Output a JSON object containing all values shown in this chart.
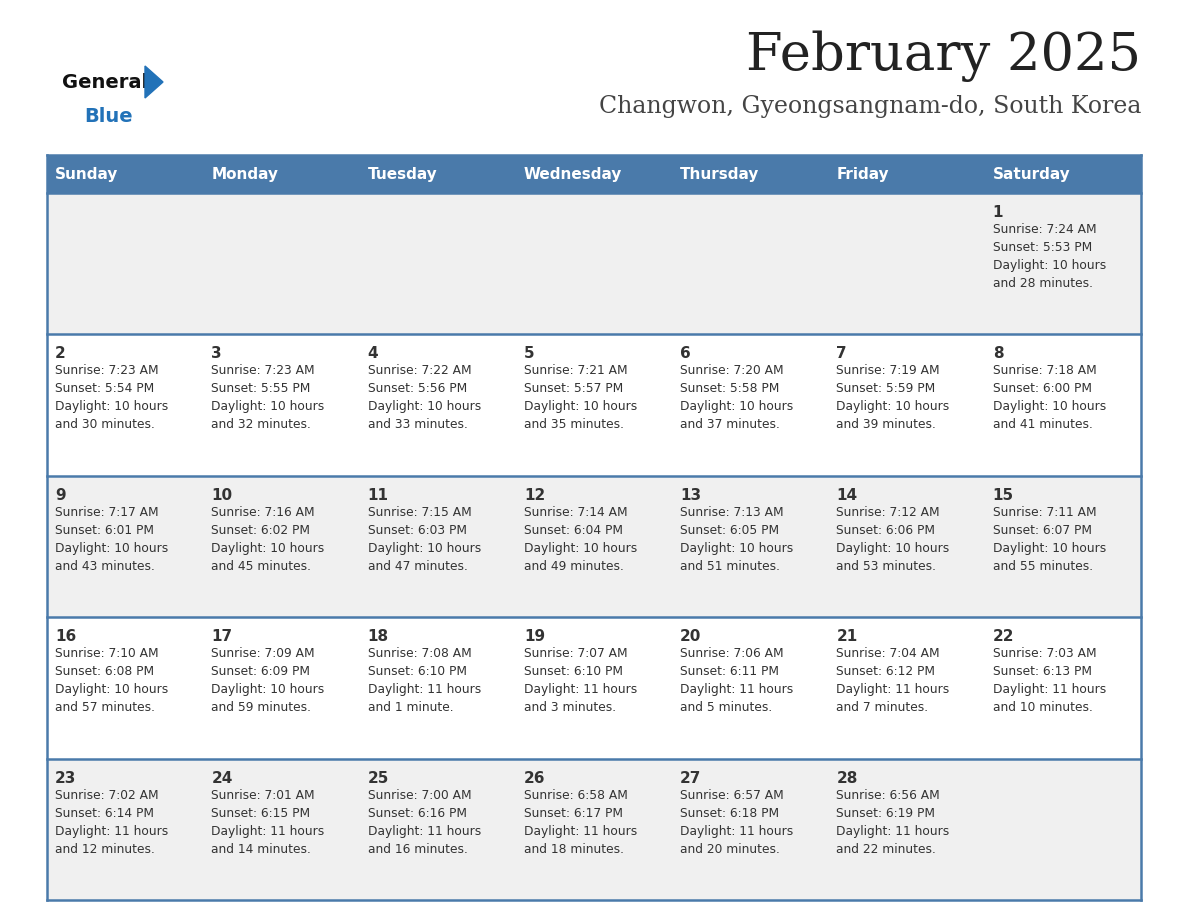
{
  "title": "February 2025",
  "subtitle": "Changwon, Gyeongsangnam-do, South Korea",
  "days_of_week": [
    "Sunday",
    "Monday",
    "Tuesday",
    "Wednesday",
    "Thursday",
    "Friday",
    "Saturday"
  ],
  "header_bg": "#4a7aaa",
  "header_text": "#FFFFFF",
  "row_bg_odd": "#f0f0f0",
  "row_bg_even": "#FFFFFF",
  "cell_text_color": "#333333",
  "day_num_color": "#333333",
  "border_color": "#4a7aaa",
  "separator_color": "#4a7aaa",
  "title_color": "#222222",
  "subtitle_color": "#444444",
  "logo_general_color": "#111111",
  "logo_blue_color": "#2272B8",
  "calendar_data": [
    [
      {
        "day": "",
        "info": ""
      },
      {
        "day": "",
        "info": ""
      },
      {
        "day": "",
        "info": ""
      },
      {
        "day": "",
        "info": ""
      },
      {
        "day": "",
        "info": ""
      },
      {
        "day": "",
        "info": ""
      },
      {
        "day": "1",
        "info": "Sunrise: 7:24 AM\nSunset: 5:53 PM\nDaylight: 10 hours\nand 28 minutes."
      }
    ],
    [
      {
        "day": "2",
        "info": "Sunrise: 7:23 AM\nSunset: 5:54 PM\nDaylight: 10 hours\nand 30 minutes."
      },
      {
        "day": "3",
        "info": "Sunrise: 7:23 AM\nSunset: 5:55 PM\nDaylight: 10 hours\nand 32 minutes."
      },
      {
        "day": "4",
        "info": "Sunrise: 7:22 AM\nSunset: 5:56 PM\nDaylight: 10 hours\nand 33 minutes."
      },
      {
        "day": "5",
        "info": "Sunrise: 7:21 AM\nSunset: 5:57 PM\nDaylight: 10 hours\nand 35 minutes."
      },
      {
        "day": "6",
        "info": "Sunrise: 7:20 AM\nSunset: 5:58 PM\nDaylight: 10 hours\nand 37 minutes."
      },
      {
        "day": "7",
        "info": "Sunrise: 7:19 AM\nSunset: 5:59 PM\nDaylight: 10 hours\nand 39 minutes."
      },
      {
        "day": "8",
        "info": "Sunrise: 7:18 AM\nSunset: 6:00 PM\nDaylight: 10 hours\nand 41 minutes."
      }
    ],
    [
      {
        "day": "9",
        "info": "Sunrise: 7:17 AM\nSunset: 6:01 PM\nDaylight: 10 hours\nand 43 minutes."
      },
      {
        "day": "10",
        "info": "Sunrise: 7:16 AM\nSunset: 6:02 PM\nDaylight: 10 hours\nand 45 minutes."
      },
      {
        "day": "11",
        "info": "Sunrise: 7:15 AM\nSunset: 6:03 PM\nDaylight: 10 hours\nand 47 minutes."
      },
      {
        "day": "12",
        "info": "Sunrise: 7:14 AM\nSunset: 6:04 PM\nDaylight: 10 hours\nand 49 minutes."
      },
      {
        "day": "13",
        "info": "Sunrise: 7:13 AM\nSunset: 6:05 PM\nDaylight: 10 hours\nand 51 minutes."
      },
      {
        "day": "14",
        "info": "Sunrise: 7:12 AM\nSunset: 6:06 PM\nDaylight: 10 hours\nand 53 minutes."
      },
      {
        "day": "15",
        "info": "Sunrise: 7:11 AM\nSunset: 6:07 PM\nDaylight: 10 hours\nand 55 minutes."
      }
    ],
    [
      {
        "day": "16",
        "info": "Sunrise: 7:10 AM\nSunset: 6:08 PM\nDaylight: 10 hours\nand 57 minutes."
      },
      {
        "day": "17",
        "info": "Sunrise: 7:09 AM\nSunset: 6:09 PM\nDaylight: 10 hours\nand 59 minutes."
      },
      {
        "day": "18",
        "info": "Sunrise: 7:08 AM\nSunset: 6:10 PM\nDaylight: 11 hours\nand 1 minute."
      },
      {
        "day": "19",
        "info": "Sunrise: 7:07 AM\nSunset: 6:10 PM\nDaylight: 11 hours\nand 3 minutes."
      },
      {
        "day": "20",
        "info": "Sunrise: 7:06 AM\nSunset: 6:11 PM\nDaylight: 11 hours\nand 5 minutes."
      },
      {
        "day": "21",
        "info": "Sunrise: 7:04 AM\nSunset: 6:12 PM\nDaylight: 11 hours\nand 7 minutes."
      },
      {
        "day": "22",
        "info": "Sunrise: 7:03 AM\nSunset: 6:13 PM\nDaylight: 11 hours\nand 10 minutes."
      }
    ],
    [
      {
        "day": "23",
        "info": "Sunrise: 7:02 AM\nSunset: 6:14 PM\nDaylight: 11 hours\nand 12 minutes."
      },
      {
        "day": "24",
        "info": "Sunrise: 7:01 AM\nSunset: 6:15 PM\nDaylight: 11 hours\nand 14 minutes."
      },
      {
        "day": "25",
        "info": "Sunrise: 7:00 AM\nSunset: 6:16 PM\nDaylight: 11 hours\nand 16 minutes."
      },
      {
        "day": "26",
        "info": "Sunrise: 6:58 AM\nSunset: 6:17 PM\nDaylight: 11 hours\nand 18 minutes."
      },
      {
        "day": "27",
        "info": "Sunrise: 6:57 AM\nSunset: 6:18 PM\nDaylight: 11 hours\nand 20 minutes."
      },
      {
        "day": "28",
        "info": "Sunrise: 6:56 AM\nSunset: 6:19 PM\nDaylight: 11 hours\nand 22 minutes."
      },
      {
        "day": "",
        "info": ""
      }
    ]
  ]
}
